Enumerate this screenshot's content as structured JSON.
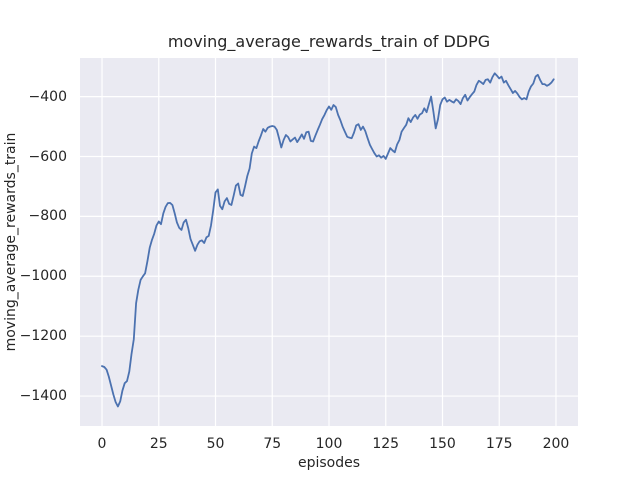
{
  "chart_data": {
    "type": "line",
    "title": "moving_average_rewards_train of DDPG",
    "xlabel": "episodes",
    "ylabel": "moving_average_rewards_train",
    "x_ticks": [
      0,
      25,
      50,
      75,
      100,
      125,
      150,
      175,
      200
    ],
    "y_ticks": [
      -400,
      -600,
      -800,
      -1000,
      -1200,
      -1400
    ],
    "xlim": [
      -9.7,
      209.7
    ],
    "ylim": [
      -1500,
      -271
    ],
    "grid": true,
    "legend": false,
    "style": {
      "figure_background": "#ffffff",
      "axes_background": "#eaeaf2",
      "grid_color": "#ffffff",
      "line_color": "#4c72b0",
      "text_color": "#262626",
      "line_width": 1.8
    },
    "series": [
      {
        "name": "moving_average_rewards_train",
        "x_start": 0,
        "x_step": 1,
        "values": [
          -1300,
          -1303,
          -1312,
          -1335,
          -1365,
          -1395,
          -1420,
          -1435,
          -1418,
          -1382,
          -1357,
          -1350,
          -1318,
          -1260,
          -1210,
          -1090,
          -1045,
          -1012,
          -1000,
          -990,
          -950,
          -905,
          -878,
          -858,
          -830,
          -817,
          -826,
          -790,
          -768,
          -756,
          -755,
          -762,
          -790,
          -820,
          -838,
          -845,
          -820,
          -811,
          -840,
          -875,
          -895,
          -915,
          -895,
          -883,
          -880,
          -889,
          -870,
          -865,
          -830,
          -780,
          -720,
          -710,
          -765,
          -776,
          -750,
          -739,
          -758,
          -762,
          -730,
          -697,
          -690,
          -728,
          -732,
          -700,
          -665,
          -640,
          -590,
          -567,
          -572,
          -550,
          -530,
          -508,
          -517,
          -504,
          -500,
          -498,
          -500,
          -511,
          -540,
          -570,
          -545,
          -528,
          -535,
          -550,
          -543,
          -537,
          -552,
          -540,
          -526,
          -541,
          -519,
          -517,
          -548,
          -550,
          -530,
          -511,
          -494,
          -475,
          -461,
          -445,
          -433,
          -444,
          -428,
          -435,
          -461,
          -478,
          -500,
          -517,
          -534,
          -537,
          -539,
          -520,
          -496,
          -492,
          -511,
          -500,
          -515,
          -539,
          -561,
          -575,
          -589,
          -600,
          -596,
          -604,
          -598,
          -608,
          -590,
          -572,
          -580,
          -586,
          -560,
          -545,
          -517,
          -505,
          -494,
          -472,
          -485,
          -470,
          -461,
          -474,
          -460,
          -455,
          -439,
          -452,
          -425,
          -400,
          -450,
          -506,
          -475,
          -428,
          -409,
          -403,
          -417,
          -411,
          -416,
          -420,
          -409,
          -415,
          -425,
          -405,
          -394,
          -413,
          -402,
          -392,
          -383,
          -361,
          -347,
          -352,
          -358,
          -344,
          -342,
          -353,
          -335,
          -322,
          -330,
          -339,
          -333,
          -353,
          -347,
          -362,
          -375,
          -388,
          -381,
          -390,
          -402,
          -409,
          -405,
          -409,
          -383,
          -366,
          -356,
          -333,
          -327,
          -344,
          -358,
          -358,
          -364,
          -360,
          -353,
          -342
        ]
      }
    ]
  }
}
